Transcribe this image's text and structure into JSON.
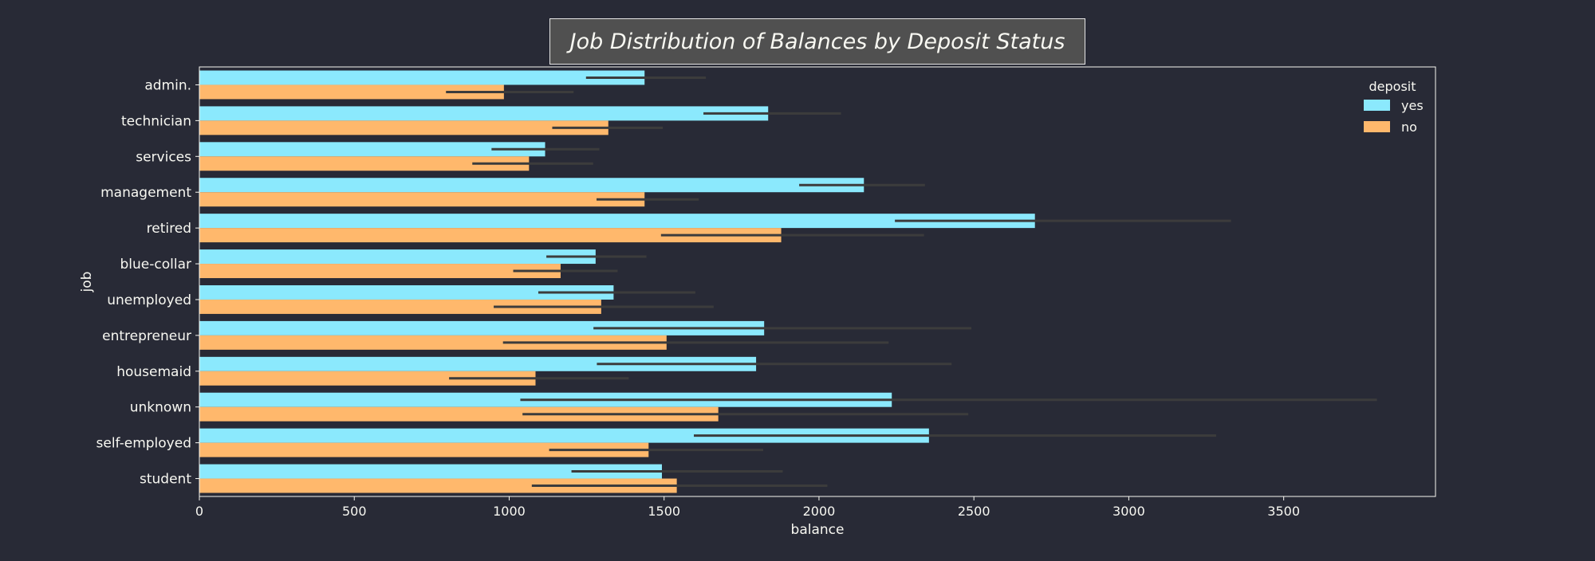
{
  "chart_data": {
    "type": "bar",
    "orientation": "horizontal",
    "title": "Job Distribution of Balances by Deposit Status",
    "xlabel": "balance",
    "ylabel": "job",
    "xlim": [
      0,
      3990
    ],
    "xticks": [
      0,
      500,
      1000,
      1500,
      2000,
      2500,
      3000,
      3500
    ],
    "categories": [
      "admin.",
      "technician",
      "services",
      "management",
      "retired",
      "blue-collar",
      "unemployed",
      "entrepreneur",
      "housemaid",
      "unknown",
      "self-employed",
      "student"
    ],
    "series": [
      {
        "name": "yes",
        "color": "#8be9fd",
        "values": [
          1437,
          1836,
          1116,
          2145,
          2697,
          1279,
          1337,
          1823,
          1797,
          2235,
          2355,
          1493
        ],
        "ci": [
          [
            1248,
            1635
          ],
          [
            1627,
            2071
          ],
          [
            943,
            1291
          ],
          [
            1936,
            2342
          ],
          [
            2245,
            3330
          ],
          [
            1120,
            1443
          ],
          [
            1094,
            1601
          ],
          [
            1272,
            2492
          ],
          [
            1283,
            2428
          ],
          [
            1036,
            3801
          ],
          [
            1596,
            3282
          ],
          [
            1201,
            1883
          ]
        ]
      },
      {
        "name": "no",
        "color": "#ffb86c",
        "values": [
          983,
          1320,
          1064,
          1437,
          1878,
          1166,
          1297,
          1508,
          1085,
          1675,
          1450,
          1541
        ],
        "ci": [
          [
            796,
            1208
          ],
          [
            1139,
            1496
          ],
          [
            881,
            1271
          ],
          [
            1282,
            1612
          ],
          [
            1490,
            2339
          ],
          [
            1013,
            1350
          ],
          [
            950,
            1660
          ],
          [
            980,
            2225
          ],
          [
            806,
            1386
          ],
          [
            1043,
            2482
          ],
          [
            1129,
            1820
          ],
          [
            1073,
            2027
          ]
        ]
      }
    ],
    "legend": {
      "title": "deposit",
      "position": "top-right"
    },
    "grid": false
  }
}
